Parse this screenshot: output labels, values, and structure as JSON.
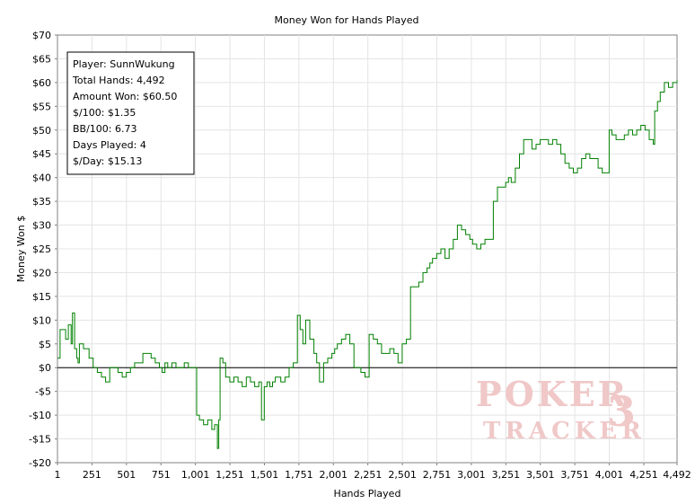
{
  "chart_data": {
    "type": "line",
    "title": "Money Won for Hands Played",
    "xlabel": "Hands Played",
    "ylabel": "Money Won $",
    "xlim": [
      1,
      4492
    ],
    "ylim": [
      -20,
      70
    ],
    "x_ticks": [
      1,
      251,
      501,
      751,
      1001,
      1251,
      1501,
      1751,
      2001,
      2251,
      2501,
      2751,
      3001,
      3251,
      3501,
      3751,
      4001,
      4251,
      4492
    ],
    "x_tick_labels": [
      "1",
      "251",
      "501",
      "751",
      "1,001",
      "1,251",
      "1,501",
      "1,751",
      "2,001",
      "2,251",
      "2,501",
      "2,751",
      "3,001",
      "3,251",
      "3,501",
      "3,751",
      "4,001",
      "4,251",
      "4,492"
    ],
    "y_ticks": [
      -20,
      -15,
      -10,
      -5,
      0,
      5,
      10,
      15,
      20,
      25,
      30,
      35,
      40,
      45,
      50,
      55,
      60,
      65,
      70
    ],
    "y_tick_labels": [
      "-$20",
      "-$15",
      "-$10",
      "-$5",
      "$0",
      "$5",
      "$10",
      "$15",
      "$20",
      "$25",
      "$30",
      "$35",
      "$40",
      "$45",
      "$50",
      "$55",
      "$60",
      "$65",
      "$70"
    ],
    "grid": true,
    "line_color": "#008000",
    "zero_line_color": "#000000",
    "series": [
      {
        "x": [
          1,
          20,
          40,
          60,
          80,
          100,
          110,
          125,
          140,
          150,
          160,
          175,
          190,
          210,
          230,
          260,
          290,
          320,
          350,
          380,
          410,
          440,
          470,
          500,
          530,
          560,
          590,
          620,
          650,
          680,
          710,
          740,
          760,
          780,
          800,
          830,
          860,
          890,
          920,
          950,
          980,
          1000,
          1010,
          1030,
          1060,
          1090,
          1120,
          1140,
          1160,
          1170,
          1180,
          1200,
          1220,
          1250,
          1280,
          1310,
          1340,
          1370,
          1400,
          1430,
          1460,
          1480,
          1500,
          1520,
          1540,
          1560,
          1580,
          1600,
          1620,
          1650,
          1680,
          1710,
          1740,
          1760,
          1780,
          1800,
          1830,
          1860,
          1880,
          1900,
          1930,
          1960,
          1990,
          2010,
          2030,
          2060,
          2090,
          2120,
          2150,
          2180,
          2200,
          2230,
          2260,
          2290,
          2320,
          2350,
          2380,
          2410,
          2440,
          2470,
          2500,
          2530,
          2560,
          2590,
          2620,
          2650,
          2680,
          2700,
          2720,
          2750,
          2780,
          2810,
          2840,
          2870,
          2900,
          2930,
          2960,
          2990,
          3010,
          3040,
          3070,
          3100,
          3130,
          3160,
          3190,
          3220,
          3250,
          3270,
          3290,
          3320,
          3350,
          3380,
          3410,
          3440,
          3470,
          3500,
          3530,
          3560,
          3590,
          3620,
          3650,
          3680,
          3710,
          3740,
          3770,
          3800,
          3830,
          3860,
          3890,
          3920,
          3950,
          3980,
          4000,
          4020,
          4050,
          4080,
          4110,
          4140,
          4170,
          4200,
          4230,
          4260,
          4290,
          4320,
          4330,
          4350,
          4370,
          4400,
          4430,
          4460,
          4492
        ],
        "y": [
          2,
          8,
          8,
          6,
          9,
          5,
          11.5,
          4,
          2,
          1,
          5,
          5,
          4,
          4,
          2,
          0,
          -1,
          -2,
          -3,
          0,
          0,
          -1,
          -2,
          -1,
          0,
          1,
          1,
          3,
          3,
          2,
          1,
          0,
          -1,
          1,
          0,
          1,
          0,
          0,
          1,
          0,
          0,
          0,
          -10,
          -11,
          -12,
          -11,
          -13,
          -12,
          -17,
          -11,
          2,
          1,
          -2,
          -3,
          -2,
          -3,
          -4,
          -2,
          -3,
          -4,
          -3,
          -11,
          -4,
          -3,
          -4,
          -3,
          -2,
          -2,
          -3,
          -2,
          0,
          1,
          11,
          8,
          5,
          10,
          6,
          3,
          1,
          -3,
          1,
          2,
          3,
          4,
          5,
          6,
          7,
          5,
          0,
          0,
          -1,
          -2,
          7,
          6,
          5,
          3,
          3,
          4,
          3,
          1,
          5,
          6,
          17,
          17,
          18,
          20,
          21,
          22,
          23,
          24,
          25,
          23,
          25,
          27,
          30,
          29,
          28,
          27,
          26,
          25,
          26,
          27,
          27,
          35,
          38,
          38,
          39,
          40,
          39,
          42,
          45,
          48,
          48,
          46,
          47,
          48,
          48,
          47,
          48,
          47,
          45,
          43,
          42,
          41,
          42,
          44,
          45,
          44,
          44,
          42,
          41,
          41,
          50,
          49,
          48,
          48,
          49,
          50,
          49,
          50,
          51,
          50,
          48,
          47,
          54,
          56,
          58,
          60,
          59,
          60,
          60.5
        ]
      }
    ],
    "stats": {
      "player": "Player: SunnWukung",
      "total_hands": "Total Hands: 4,492",
      "amount_won": "Amount Won: $60.50",
      "per100": "$/100: $1.35",
      "bb100": "BB/100: 6.73",
      "days_played": "Days Played: 4",
      "per_day": "$/Day: $15.13"
    },
    "watermark": {
      "line1": "POKER",
      "line2": "TRACKER",
      "badge": "3",
      "color": "#f0c8c8"
    }
  }
}
